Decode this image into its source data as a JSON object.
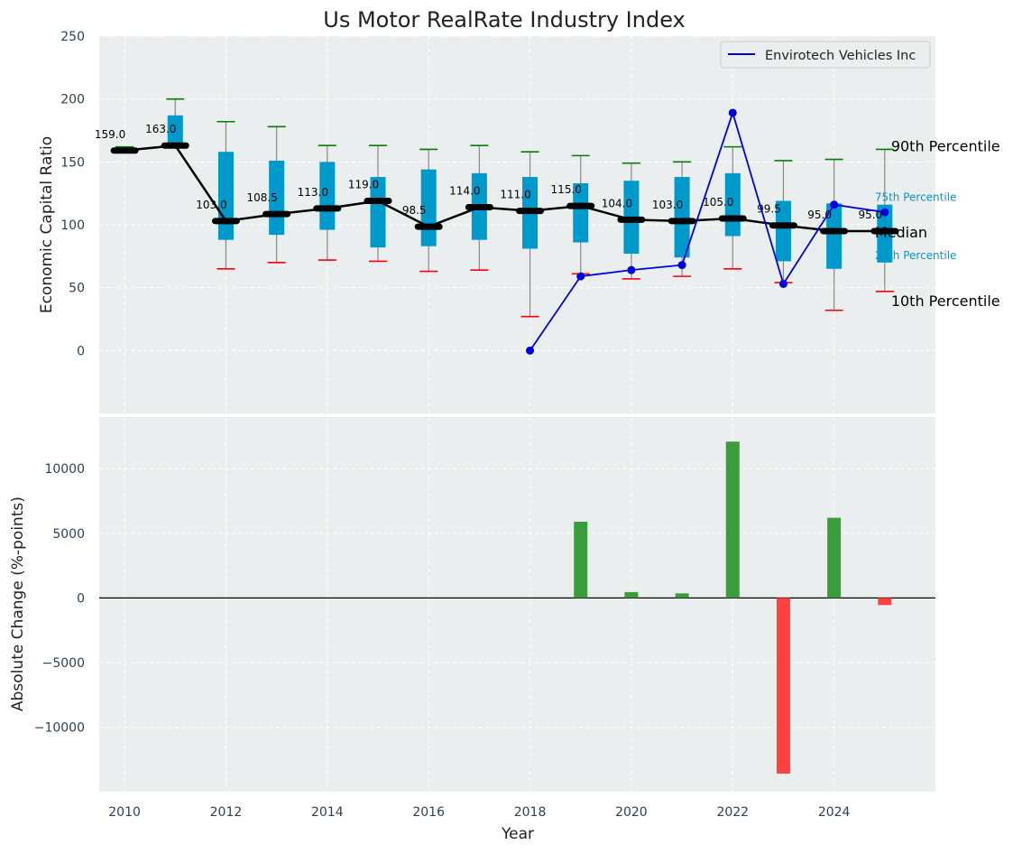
{
  "chart_data": [
    {
      "type": "box",
      "title": "Us Motor RealRate Industry Index",
      "xlabel": "",
      "ylabel": "Economic Capital Ratio",
      "ylim": [
        -50,
        250
      ],
      "yticks": [
        0,
        50,
        100,
        150,
        200,
        250
      ],
      "grid": true,
      "legend_position": "top-right",
      "colors": {
        "box": "#0099cc",
        "median": "#000000",
        "p90": "#008000",
        "p10": "#ff0000",
        "company": "#0000dd",
        "whisker": "#888888"
      },
      "years": [
        2010,
        2011,
        2012,
        2013,
        2014,
        2015,
        2016,
        2017,
        2018,
        2019,
        2020,
        2021,
        2022,
        2023,
        2024,
        2025
      ],
      "median": [
        159.0,
        163.0,
        103.0,
        108.5,
        113.0,
        119.0,
        98.5,
        114.0,
        111.0,
        115.0,
        104.0,
        103.0,
        105.0,
        99.5,
        95.0,
        95.0
      ],
      "median_labels": [
        "159.0",
        "163.0",
        "103.0",
        "108.5",
        "113.0",
        "119.0",
        "98.5",
        "114.0",
        "111.0",
        "115.0",
        "104.0",
        "103.0",
        "105.0",
        "99.5",
        "95.0",
        "95.0"
      ],
      "q1": [
        159,
        163,
        88,
        92,
        96,
        82,
        83,
        88,
        81,
        86,
        77,
        74,
        91,
        71,
        65,
        70
      ],
      "q3": [
        161,
        187,
        158,
        151,
        150,
        138,
        144,
        141,
        138,
        133,
        135,
        138,
        141,
        119,
        117,
        116
      ],
      "p10": [
        159,
        163,
        65,
        70,
        72,
        71,
        63,
        64,
        27,
        61,
        57,
        59,
        65,
        54,
        32,
        47
      ],
      "p90": [
        162,
        200,
        182,
        178,
        163,
        163,
        160,
        163,
        158,
        155,
        149,
        150,
        162,
        151,
        152,
        160
      ],
      "series": [
        {
          "name": "Envirotech Vehicles Inc",
          "x": [
            2018,
            2019,
            2020,
            2021,
            2022,
            2023,
            2024,
            2025
          ],
          "values": [
            0,
            59,
            64,
            68,
            189,
            53,
            116,
            110
          ]
        }
      ],
      "annotations": {
        "p90": "90th Percentile",
        "q3": "75th Percentile",
        "median": "Median",
        "q1": "25th Percentile",
        "p10": "10th Percentile"
      }
    },
    {
      "type": "bar",
      "xlabel": "Year",
      "ylabel": "Absolute Change (%-points)",
      "ylim": [
        -15000,
        14000
      ],
      "yticks": [
        -10000,
        -5000,
        0,
        5000,
        10000
      ],
      "xticks": [
        2010,
        2012,
        2014,
        2016,
        2018,
        2020,
        2022,
        2024
      ],
      "grid": true,
      "colors": {
        "positive": "#3a9c3a",
        "negative": "#ff4040"
      },
      "x": [
        2019,
        2020,
        2021,
        2022,
        2023,
        2024,
        2025
      ],
      "values": [
        5900,
        450,
        350,
        12100,
        -13600,
        6200,
        -550
      ]
    }
  ]
}
